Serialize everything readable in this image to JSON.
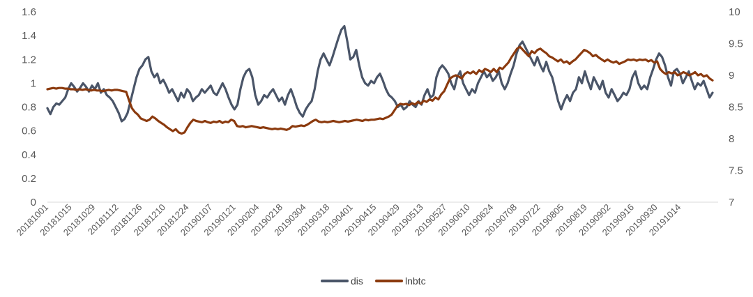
{
  "chart_data": {
    "type": "line",
    "title": "",
    "xlabel": "",
    "ylabel": "",
    "y_left": {
      "min": 0,
      "max": 1.6,
      "ticks": [
        "0",
        "0.2",
        "0.4",
        "0.6",
        "0.8",
        "1",
        "1.2",
        "1.4",
        "1.6"
      ]
    },
    "y_right": {
      "min": 7,
      "max": 10,
      "ticks": [
        "7",
        "7.5",
        "8",
        "8.5",
        "9",
        "9.5",
        "10"
      ]
    },
    "x_tick_labels": [
      "20181001",
      "20181015",
      "20181029",
      "20181112",
      "20181126",
      "20181210",
      "20181224",
      "20190107",
      "20190121",
      "20190204",
      "20190218",
      "20190304",
      "20190318",
      "20190401",
      "20190415",
      "20190429",
      "20190513",
      "20190527",
      "20190610",
      "20190624",
      "20190708",
      "20190722",
      "20190805",
      "20190819",
      "20190902",
      "20190916",
      "20190930",
      "20191014"
    ],
    "grid": false,
    "legend_position": "bottom",
    "series": [
      {
        "name": "dis",
        "axis": "left",
        "color": "#4a5568",
        "values": [
          0.79,
          0.74,
          0.8,
          0.83,
          0.82,
          0.85,
          0.88,
          0.95,
          1.0,
          0.97,
          0.93,
          0.96,
          1.0,
          0.97,
          0.93,
          0.98,
          0.95,
          1.0,
          0.92,
          0.95,
          0.9,
          0.88,
          0.85,
          0.8,
          0.75,
          0.68,
          0.7,
          0.75,
          0.85,
          0.95,
          1.05,
          1.12,
          1.15,
          1.2,
          1.22,
          1.1,
          1.05,
          1.08,
          1.0,
          1.03,
          0.98,
          0.92,
          0.95,
          0.9,
          0.85,
          0.92,
          0.88,
          0.95,
          0.92,
          0.85,
          0.88,
          0.9,
          0.95,
          0.92,
          0.95,
          0.98,
          0.92,
          0.9,
          0.95,
          1.0,
          0.95,
          0.88,
          0.82,
          0.78,
          0.82,
          0.95,
          1.05,
          1.1,
          1.12,
          1.05,
          0.9,
          0.82,
          0.85,
          0.9,
          0.88,
          0.92,
          0.95,
          0.9,
          0.85,
          0.88,
          0.82,
          0.9,
          0.95,
          0.88,
          0.8,
          0.75,
          0.72,
          0.78,
          0.82,
          0.85,
          0.95,
          1.1,
          1.2,
          1.25,
          1.2,
          1.15,
          1.22,
          1.3,
          1.38,
          1.45,
          1.48,
          1.35,
          1.2,
          1.22,
          1.28,
          1.15,
          1.05,
          1.0,
          0.98,
          1.02,
          1.0,
          1.05,
          1.08,
          1.02,
          0.95,
          0.9,
          0.88,
          0.85,
          0.8,
          0.82,
          0.78,
          0.8,
          0.85,
          0.82,
          0.8,
          0.85,
          0.82,
          0.9,
          0.95,
          0.88,
          0.9,
          1.05,
          1.12,
          1.15,
          1.12,
          1.08,
          1.0,
          0.95,
          1.05,
          1.1,
          1.0,
          0.95,
          0.9,
          0.95,
          0.92,
          1.0,
          1.05,
          1.1,
          1.05,
          1.08,
          1.02,
          1.05,
          1.1,
          1.0,
          0.95,
          1.0,
          1.08,
          1.15,
          1.25,
          1.32,
          1.35,
          1.3,
          1.25,
          1.2,
          1.15,
          1.22,
          1.15,
          1.1,
          1.18,
          1.1,
          1.05,
          0.95,
          0.85,
          0.78,
          0.85,
          0.9,
          0.85,
          0.92,
          0.95,
          1.05,
          1.0,
          1.1,
          1.02,
          0.95,
          1.05,
          1.0,
          0.95,
          1.02,
          0.92,
          0.88,
          0.95,
          0.9,
          0.85,
          0.88,
          0.92,
          0.9,
          0.95,
          1.05,
          1.1,
          1.0,
          0.95,
          0.98,
          0.95,
          1.05,
          1.12,
          1.2,
          1.25,
          1.22,
          1.15,
          1.05,
          0.98,
          1.1,
          1.12,
          1.08,
          1.0,
          1.05,
          1.1,
          1.02,
          0.95,
          1.0,
          0.98,
          1.02,
          0.95,
          0.88,
          0.92
        ]
      },
      {
        "name": "lnbtc",
        "axis": "right",
        "color": "#8b3a0e",
        "values": [
          8.78,
          8.79,
          8.8,
          8.79,
          8.8,
          8.8,
          8.79,
          8.79,
          8.78,
          8.78,
          8.77,
          8.78,
          8.77,
          8.78,
          8.77,
          8.76,
          8.77,
          8.76,
          8.76,
          8.75,
          8.76,
          8.77,
          8.76,
          8.77,
          8.77,
          8.76,
          8.75,
          8.74,
          8.6,
          8.48,
          8.42,
          8.38,
          8.32,
          8.3,
          8.28,
          8.3,
          8.35,
          8.32,
          8.28,
          8.25,
          8.22,
          8.18,
          8.15,
          8.12,
          8.15,
          8.1,
          8.08,
          8.1,
          8.18,
          8.25,
          8.3,
          8.28,
          8.27,
          8.26,
          8.28,
          8.26,
          8.25,
          8.27,
          8.26,
          8.28,
          8.25,
          8.27,
          8.26,
          8.3,
          8.28,
          8.2,
          8.19,
          8.2,
          8.18,
          8.19,
          8.2,
          8.19,
          8.18,
          8.17,
          8.18,
          8.17,
          8.16,
          8.15,
          8.16,
          8.15,
          8.16,
          8.15,
          8.14,
          8.16,
          8.2,
          8.19,
          8.2,
          8.21,
          8.2,
          8.22,
          8.25,
          8.28,
          8.3,
          8.27,
          8.26,
          8.27,
          8.26,
          8.27,
          8.28,
          8.27,
          8.26,
          8.27,
          8.28,
          8.27,
          8.28,
          8.29,
          8.3,
          8.29,
          8.28,
          8.3,
          8.29,
          8.3,
          8.3,
          8.31,
          8.32,
          8.31,
          8.33,
          8.35,
          8.38,
          8.45,
          8.52,
          8.55,
          8.54,
          8.55,
          8.53,
          8.56,
          8.54,
          8.58,
          8.55,
          8.6,
          8.58,
          8.62,
          8.6,
          8.65,
          8.62,
          8.7,
          8.75,
          8.85,
          8.95,
          8.98,
          9.0,
          8.98,
          8.95,
          9.02,
          9.05,
          9.03,
          9.06,
          9.02,
          9.08,
          9.05,
          9.1,
          9.08,
          9.05,
          9.1,
          9.05,
          9.12,
          9.1,
          9.15,
          9.2,
          9.28,
          9.35,
          9.42,
          9.45,
          9.4,
          9.35,
          9.3,
          9.38,
          9.35,
          9.4,
          9.42,
          9.38,
          9.35,
          9.3,
          9.28,
          9.25,
          9.22,
          9.25,
          9.2,
          9.22,
          9.18,
          9.22,
          9.25,
          9.3,
          9.35,
          9.4,
          9.38,
          9.35,
          9.3,
          9.32,
          9.28,
          9.25,
          9.22,
          9.25,
          9.22,
          9.2,
          9.22,
          9.18,
          9.2,
          9.22,
          9.25,
          9.24,
          9.25,
          9.23,
          9.25,
          9.24,
          9.25,
          9.22,
          9.24,
          9.2,
          9.22,
          9.1,
          9.05,
          9.02,
          9.05,
          9.03,
          9.05,
          9.0,
          9.02,
          9.05,
          9.03,
          9.0,
          9.02,
          9.05,
          9.0,
          9.02,
          8.98,
          9.0,
          8.95,
          8.92
        ]
      }
    ]
  }
}
